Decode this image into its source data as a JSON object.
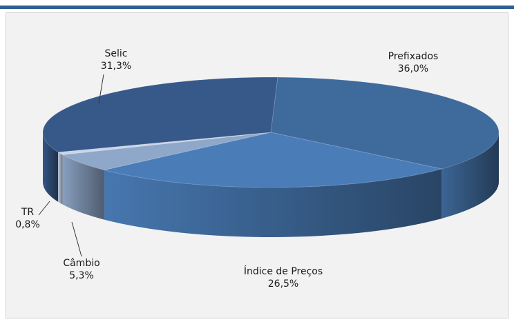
{
  "chart_data": {
    "type": "pie",
    "categories": [
      "Prefixados",
      "Índice de Preços",
      "Câmbio",
      "TR",
      "Selic"
    ],
    "values": [
      36.0,
      26.5,
      5.3,
      0.8,
      31.3
    ],
    "value_labels": [
      "36,0%",
      "26,5%",
      "5,3%",
      "0,8%",
      "31,3%"
    ],
    "colors": [
      "#3f6a9c",
      "#4a7db8",
      "#8fa7c9",
      "#c9d6e8",
      "#37598a"
    ]
  }
}
